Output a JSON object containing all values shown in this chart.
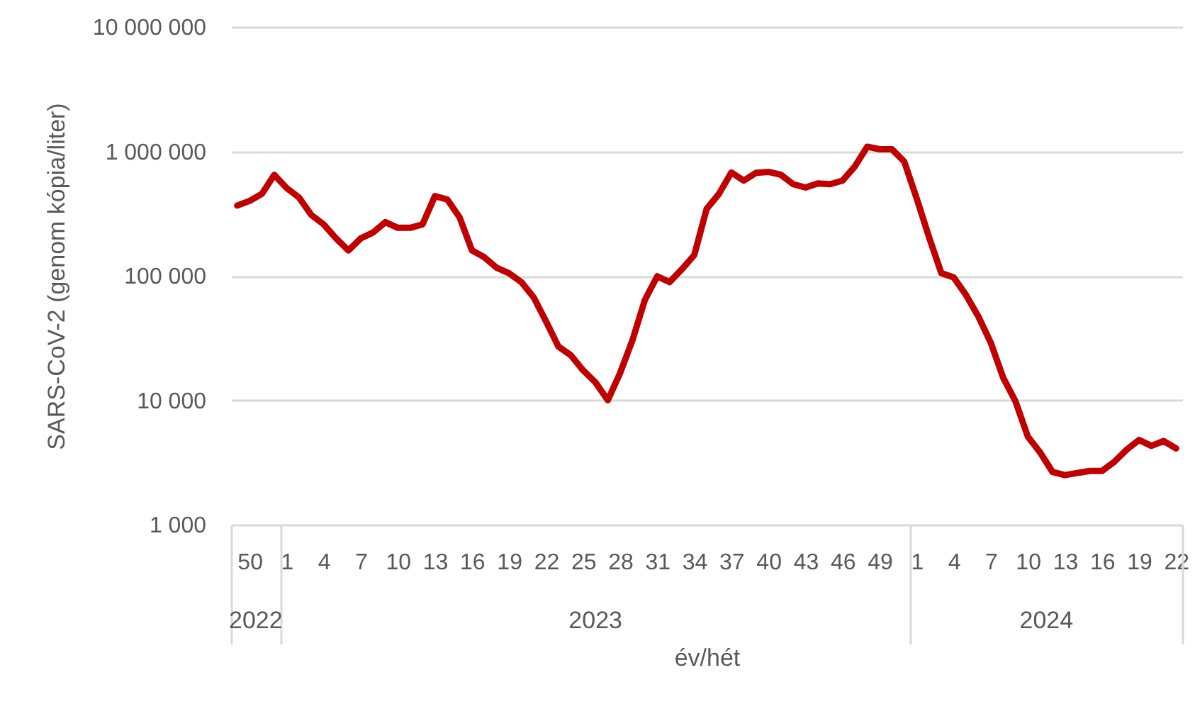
{
  "chart_data": {
    "type": "line",
    "categories": [
      null,
      "50",
      null,
      null,
      "1",
      null,
      null,
      "4",
      null,
      null,
      "7",
      null,
      null,
      "10",
      null,
      null,
      "13",
      null,
      null,
      "16",
      null,
      null,
      "19",
      null,
      null,
      "22",
      null,
      null,
      "25",
      null,
      null,
      "28",
      null,
      null,
      "31",
      null,
      null,
      "34",
      null,
      null,
      "37",
      null,
      null,
      "40",
      null,
      null,
      "43",
      null,
      null,
      "46",
      null,
      null,
      "49",
      null,
      null,
      "1",
      null,
      null,
      "4",
      null,
      null,
      "7",
      null,
      null,
      "10",
      null,
      null,
      "13",
      null,
      null,
      "16",
      null,
      null,
      "19",
      null,
      null,
      "22"
    ],
    "series": [
      {
        "color": "#c00000",
        "values": [
          367000,
          400000,
          456000,
          648000,
          507000,
          426000,
          308000,
          259000,
          200000,
          160000,
          200000,
          223000,
          270000,
          243000,
          243000,
          259000,
          437000,
          411000,
          295000,
          160000,
          141000,
          116000,
          105000,
          89000,
          67000,
          43000,
          27000,
          23000,
          17400,
          13900,
          10000,
          16600,
          30500,
          64000,
          99000,
          89000,
          113000,
          147000,
          345000,
          456000,
          676000,
          582000,
          672000,
          684000,
          650000,
          545000,
          512000,
          553000,
          545000,
          582000,
          757000,
          1090000,
          1040000,
          1040000,
          826000,
          419000,
          205000,
          105000,
          97000,
          70000,
          47000,
          29000,
          15200,
          9800,
          5100,
          3800,
          2650,
          2500,
          2600,
          2700,
          2700,
          3200,
          4000,
          4800,
          4300,
          4700,
          4100
        ]
      }
    ],
    "xlabel": "év/hét",
    "ylabel": "SARS-CoV-2 (genom kópia/liter)",
    "annotations": [
      "2022",
      "2023",
      "2024"
    ],
    "log": true,
    "ylim": [
      1000,
      10000000
    ],
    "yticks": [
      {
        "value": 1000,
        "label": "1 000"
      },
      {
        "value": 10000,
        "label": "10 000"
      },
      {
        "value": 100000,
        "label": "100 000"
      },
      {
        "value": 1000000,
        "label": "1 000 000"
      },
      {
        "value": 10000000,
        "label": "10 000 000"
      }
    ],
    "grid": "y",
    "marker": "none",
    "line_style": "solid"
  }
}
